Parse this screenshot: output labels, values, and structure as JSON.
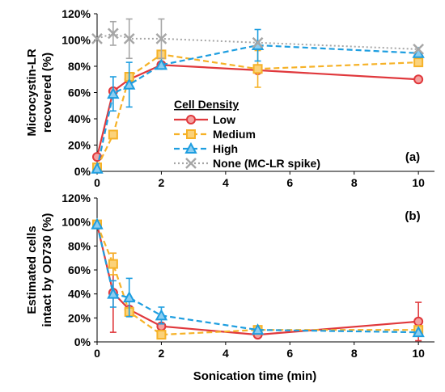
{
  "colors": {
    "low": "#e0383c",
    "medium": "#f6b228",
    "high": "#1e9ee0",
    "none": "#a6a6a6",
    "axis": "#000000",
    "grid": "#d9d9d9"
  },
  "chart_data": [
    {
      "type": "line",
      "panel_label": "(a)",
      "ylabel_lines": [
        "Microcystin-LR",
        "recovered (%)"
      ],
      "xlabel": "",
      "xlim": [
        0,
        10.5
      ],
      "ylim": [
        0,
        120
      ],
      "yticks": [
        0,
        20,
        40,
        60,
        80,
        100,
        120
      ],
      "ytick_labels": [
        "0%",
        "20%",
        "40%",
        "60%",
        "80%",
        "100%",
        "120%"
      ],
      "xticks": [
        0,
        2,
        4,
        6,
        8,
        10
      ],
      "xtick_labels": [
        "0",
        "2",
        "4",
        "6",
        "8",
        "10"
      ],
      "legend": {
        "title": "Cell Density",
        "placement": "center-right",
        "entries": [
          "Low",
          "Medium",
          "High",
          "None (MC-LR spike)"
        ]
      },
      "series": [
        {
          "name": "Low",
          "color_key": "low",
          "marker": "circle",
          "dash": "solid",
          "x": [
            0,
            0.5,
            1,
            2,
            5,
            10
          ],
          "y": [
            11,
            61,
            70,
            81,
            77,
            70
          ],
          "err": [
            0,
            0,
            0,
            0,
            0,
            0
          ]
        },
        {
          "name": "Medium",
          "color_key": "medium",
          "marker": "square",
          "dash": "dashed",
          "x": [
            0,
            0.5,
            1,
            2,
            5,
            10
          ],
          "y": [
            3,
            28,
            72,
            89,
            78,
            83
          ],
          "err": [
            0,
            0,
            0,
            0,
            14,
            0
          ]
        },
        {
          "name": "High",
          "color_key": "high",
          "marker": "triangle",
          "dash": "dashed",
          "x": [
            0,
            0.5,
            1,
            2,
            5,
            10
          ],
          "y": [
            2,
            59,
            66,
            81,
            96,
            90
          ],
          "err": [
            0,
            13,
            17,
            0,
            12,
            0
          ]
        },
        {
          "name": "None (MC-LR spike)",
          "color_key": "none",
          "marker": "x",
          "dash": "dotted",
          "x": [
            0,
            0.5,
            1,
            2,
            5,
            10
          ],
          "y": [
            101,
            105,
            101,
            101,
            98,
            93
          ],
          "err": [
            0,
            9,
            15,
            15,
            0,
            0
          ]
        }
      ]
    },
    {
      "type": "line",
      "panel_label": "(b)",
      "ylabel_lines": [
        "Estimated cells",
        "intact by OD730 (%)"
      ],
      "xlabel": "Sonication time (min)",
      "xlim": [
        0,
        10.5
      ],
      "ylim": [
        0,
        120
      ],
      "yticks": [
        0,
        20,
        40,
        60,
        80,
        100,
        120
      ],
      "ytick_labels": [
        "0%",
        "20%",
        "40%",
        "60%",
        "80%",
        "100%",
        "120%"
      ],
      "xticks": [
        0,
        2,
        4,
        6,
        8,
        10
      ],
      "xtick_labels": [
        "0",
        "2",
        "4",
        "6",
        "8",
        "10"
      ],
      "series": [
        {
          "name": "Low",
          "color_key": "low",
          "marker": "circle",
          "dash": "solid",
          "x": [
            0,
            0.5,
            1,
            2,
            5,
            10
          ],
          "y": [
            98,
            41,
            27,
            13,
            6,
            17
          ],
          "err": [
            0,
            33,
            0,
            0,
            0,
            16
          ]
        },
        {
          "name": "Medium",
          "color_key": "medium",
          "marker": "square",
          "dash": "dashed",
          "x": [
            0,
            0.5,
            1,
            2,
            5,
            10
          ],
          "y": [
            98,
            65,
            25,
            6,
            10,
            10
          ],
          "err": [
            0,
            9,
            0,
            0,
            0,
            0
          ]
        },
        {
          "name": "High",
          "color_key": "high",
          "marker": "triangle",
          "dash": "dashed",
          "x": [
            0,
            0.5,
            1,
            2,
            5,
            10
          ],
          "y": [
            98,
            40,
            37,
            22,
            10,
            8
          ],
          "err": [
            0,
            11,
            16,
            7,
            0,
            0
          ]
        }
      ]
    }
  ]
}
